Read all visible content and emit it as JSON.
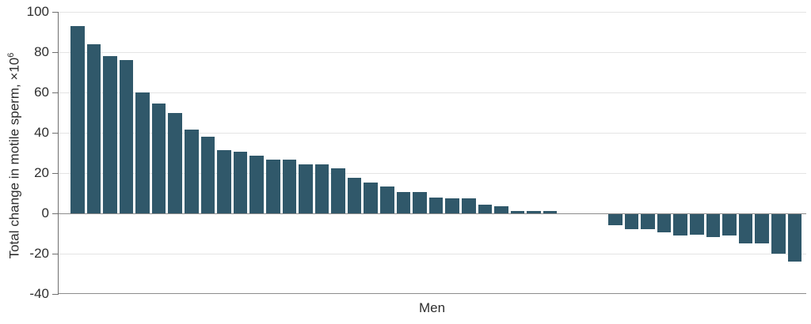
{
  "chart_data": {
    "type": "bar",
    "title": "",
    "xlabel": "Men",
    "ylabel": "Total change in motile sperm, ×10⁶",
    "ylabel_base": "Total change in motile sperm, ×10",
    "ylabel_exponent": "6",
    "ylim": [
      -40,
      100
    ],
    "yticks": [
      100,
      80,
      60,
      40,
      20,
      0,
      -20,
      -40
    ],
    "gridline_values": [
      100,
      80,
      60,
      40,
      20,
      -20
    ],
    "grid": "horizontal light gray, zero line and bottom axis darker gray",
    "legend_position": "none",
    "x_axis": "one bar per man, sorted descending, no individual labels",
    "values": [
      93,
      84,
      78,
      76,
      60,
      54.5,
      50,
      41.5,
      38,
      31.5,
      30.5,
      28.5,
      26.5,
      26.5,
      24.5,
      24.5,
      22.5,
      17.5,
      15.5,
      13.5,
      10.5,
      10.5,
      8,
      7.5,
      7.5,
      4.5,
      3.5,
      1,
      1,
      1,
      0,
      0,
      0,
      -5.5,
      -7.5,
      -7.5,
      -9,
      -10.5,
      -10,
      -11.5,
      -10.5,
      -14.5,
      -14.5,
      -19.5,
      -23.5
    ]
  },
  "colors": {
    "bar": "#30586A",
    "gridline": "#e4e4e4",
    "zero_line": "#8c8c8c",
    "axis_line": "#6f6f6f",
    "text": "#2e2e2e"
  }
}
